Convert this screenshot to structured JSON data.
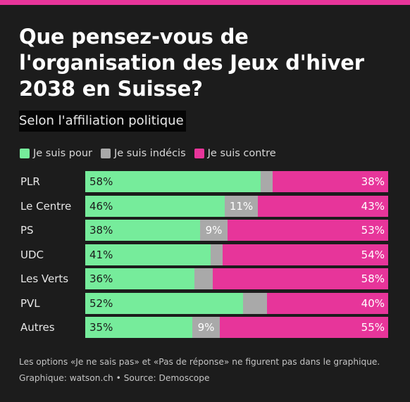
{
  "title": "Que pensez-vous de l'organisation des Jeux d'hiver 2038 en Suisse?",
  "subtitle": "Selon l'affiliation politique",
  "legend": [
    {
      "label": "Je suis pour",
      "color": "#76ec9b"
    },
    {
      "label": "Je suis indécis",
      "color": "#a9a9a9"
    },
    {
      "label": "Je suis contre",
      "color": "#e7359a"
    }
  ],
  "chart_data": {
    "type": "bar",
    "orientation": "horizontal",
    "stacked": true,
    "categories": [
      "PLR",
      "Le Centre",
      "PS",
      "UDC",
      "Les Verts",
      "PVL",
      "Autres"
    ],
    "series": [
      {
        "name": "Je suis pour",
        "color": "#76ec9b",
        "values": [
          58,
          46,
          38,
          41,
          36,
          52,
          35
        ],
        "labels": [
          "58%",
          "46%",
          "38%",
          "41%",
          "36%",
          "52%",
          "35%"
        ]
      },
      {
        "name": "Je suis indécis",
        "color": "#a9a9a9",
        "values": [
          4,
          11,
          9,
          4,
          6,
          8,
          9
        ],
        "labels": [
          "",
          "11%",
          "9%",
          "",
          "",
          "",
          "9%"
        ]
      },
      {
        "name": "Je suis contre",
        "color": "#e7359a",
        "values": [
          38,
          43,
          53,
          54,
          58,
          40,
          55
        ],
        "labels": [
          "38%",
          "43%",
          "53%",
          "54%",
          "58%",
          "40%",
          "55%"
        ]
      }
    ],
    "xlim": [
      0,
      100
    ],
    "grid": false,
    "legend_position": "top-left"
  },
  "footnote": "Les options «Je ne sais pas» et «Pas de réponse» ne figurent pas dans le graphique.",
  "credit": "Graphique: watson.ch • Source: Demoscope"
}
